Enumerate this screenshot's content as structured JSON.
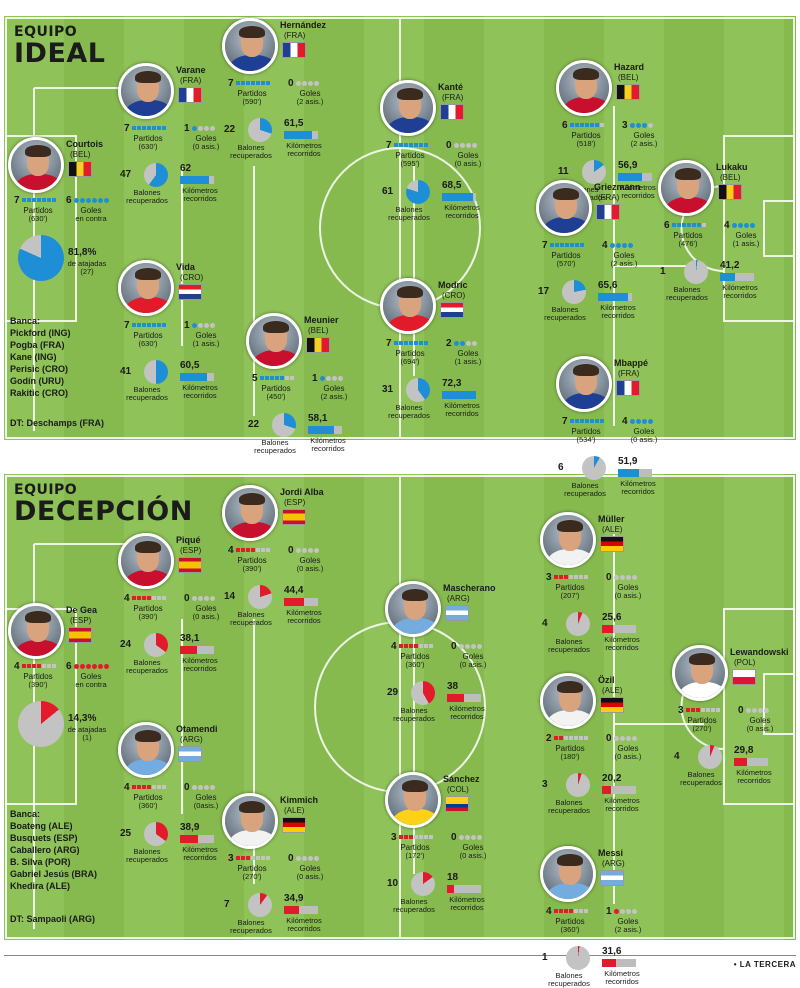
{
  "colors": {
    "ideal": "#1e8fd6",
    "deception": "#e21b2c",
    "grey": "#c3c3c3"
  },
  "labels": {
    "partidos": "Partidos",
    "goles": "Goles",
    "balones": "Balones",
    "recuperados": "recuperados",
    "kilometros": "Kilómetros",
    "recorridos": "recorridos",
    "goles_en_contra": "Goles",
    "en_contra": "en contra",
    "de_atajadas": "de atajadas"
  },
  "teams": [
    {
      "id": "ideal",
      "small_title": "EQUIPO",
      "big_title": "IDEAL",
      "bench_title": "Banca:",
      "bench": [
        "Pickford (ING)",
        "Pogba (FRA)",
        "Kane (ING)",
        "Perisic (CRO)",
        "Godín (URU)",
        "Rakitic (CRO)"
      ],
      "dt": "DT: Deschamps (FRA)",
      "goalkeeper": {
        "name": "Courtois",
        "country": "(BEL)",
        "flag": "bel",
        "matches": "7",
        "minutes": "(630')",
        "conceded": "6",
        "save_pct_text": "81,8%",
        "saves": "(27)",
        "save_fraction": 0.818
      },
      "players": [
        {
          "name": "Varane",
          "country": "(FRA)",
          "flag": "fra",
          "matches": "7",
          "minutes": "(630')",
          "goals": "1",
          "assists": "(0 asis.)",
          "recovered": "47",
          "rec_fraction": 0.6,
          "km": "62",
          "km_fraction": 0.85
        },
        {
          "name": "Vida",
          "country": "(CRO)",
          "flag": "cro",
          "matches": "7",
          "minutes": "(630')",
          "goals": "1",
          "assists": "(1 asis.)",
          "recovered": "41",
          "rec_fraction": 0.5,
          "km": "60,5",
          "km_fraction": 0.8
        },
        {
          "name": "Hernández",
          "country": "(FRA)",
          "flag": "fra",
          "matches": "7",
          "minutes": "(590')",
          "goals": "0",
          "assists": "(2 asis.)",
          "recovered": "22",
          "rec_fraction": 0.3,
          "km": "61,5",
          "km_fraction": 0.83
        },
        {
          "name": "Meunier",
          "country": "(BEL)",
          "flag": "bel",
          "matches": "5",
          "minutes": "(450')",
          "goals": "1",
          "assists": "(2 asis.)",
          "recovered": "22",
          "rec_fraction": 0.3,
          "km": "58,1",
          "km_fraction": 0.75
        },
        {
          "name": "Kanté",
          "country": "(FRA)",
          "flag": "fra",
          "matches": "7",
          "minutes": "(595')",
          "goals": "0",
          "assists": "(0 asis.)",
          "recovered": "61",
          "rec_fraction": 0.8,
          "km": "68,5",
          "km_fraction": 0.92
        },
        {
          "name": "Modric",
          "country": "(CRO)",
          "flag": "cro",
          "matches": "7",
          "minutes": "(694')",
          "goals": "2",
          "assists": "(1 asis.)",
          "recovered": "31",
          "rec_fraction": 0.4,
          "km": "72,3",
          "km_fraction": 1.0
        },
        {
          "name": "Hazard",
          "country": "(BEL)",
          "flag": "bel",
          "matches": "6",
          "minutes": "(518')",
          "goals": "3",
          "assists": "(2 asis.)",
          "recovered": "11",
          "rec_fraction": 0.15,
          "km": "56,9",
          "km_fraction": 0.72
        },
        {
          "name": "Griezmann",
          "country": "(FRA)",
          "flag": "fra",
          "matches": "7",
          "minutes": "(570')",
          "goals": "4",
          "assists": "(2 asis.)",
          "recovered": "17",
          "rec_fraction": 0.22,
          "km": "65,6",
          "km_fraction": 0.88
        },
        {
          "name": "Lukaku",
          "country": "(BEL)",
          "flag": "bel",
          "matches": "6",
          "minutes": "(476')",
          "goals": "4",
          "assists": "(1 asis.)",
          "recovered": "1",
          "rec_fraction": 0.02,
          "km": "41,2",
          "km_fraction": 0.45
        },
        {
          "name": "Mbappé",
          "country": "(FRA)",
          "flag": "fra",
          "matches": "7",
          "minutes": "(534')",
          "goals": "4",
          "assists": "(0 asis.)",
          "recovered": "6",
          "rec_fraction": 0.08,
          "km": "51,9",
          "km_fraction": 0.62
        }
      ]
    },
    {
      "id": "deception",
      "small_title": "EQUIPO",
      "big_title": "DECEPCIÓN",
      "bench_title": "Banca:",
      "bench": [
        "Boateng (ALE)",
        "Busquets (ESP)",
        "Caballero (ARG)",
        "B. Silva (POR)",
        "Gabriel Jesús (BRA)",
        "Khedira (ALE)"
      ],
      "dt": "DT: Sampaoli (ARG)",
      "goalkeeper": {
        "name": "De Gea",
        "country": "(ESP)",
        "flag": "esp",
        "matches": "4",
        "minutes": "(390')",
        "conceded": "6",
        "save_pct_text": "14,3%",
        "saves": "(1)",
        "save_fraction": 0.143
      },
      "players": [
        {
          "name": "Piqué",
          "country": "(ESP)",
          "flag": "esp",
          "matches": "4",
          "minutes": "(390')",
          "goals": "0",
          "assists": "(0 asis.)",
          "recovered": "24",
          "rec_fraction": 0.35,
          "km": "38,1",
          "km_fraction": 0.5
        },
        {
          "name": "Otamendi",
          "country": "(ARG)",
          "flag": "arg",
          "matches": "4",
          "minutes": "(360')",
          "goals": "0",
          "assists": "(0asis.)",
          "recovered": "25",
          "rec_fraction": 0.35,
          "km": "38,9",
          "km_fraction": 0.52
        },
        {
          "name": "Jordi Alba",
          "country": "(ESP)",
          "flag": "esp",
          "matches": "4",
          "minutes": "(390')",
          "goals": "0",
          "assists": "(0 asis.)",
          "recovered": "14",
          "rec_fraction": 0.2,
          "km": "44,4",
          "km_fraction": 0.6
        },
        {
          "name": "Kimmich",
          "country": "(ALE)",
          "flag": "ale",
          "matches": "3",
          "minutes": "(270')",
          "goals": "0",
          "assists": "(0 asis.)",
          "recovered": "7",
          "rec_fraction": 0.1,
          "km": "34,9",
          "km_fraction": 0.45
        },
        {
          "name": "Mascherano",
          "country": "(ARG)",
          "flag": "arg",
          "matches": "4",
          "minutes": "(360')",
          "goals": "0",
          "assists": "(0 asis.)",
          "recovered": "29",
          "rec_fraction": 0.42,
          "km": "38",
          "km_fraction": 0.5
        },
        {
          "name": "Sánchez",
          "country": "(COL)",
          "flag": "col",
          "matches": "3",
          "minutes": "(172')",
          "goals": "0",
          "assists": "(0 asis.)",
          "recovered": "10",
          "rec_fraction": 0.15,
          "km": "18",
          "km_fraction": 0.22
        },
        {
          "name": "Müller",
          "country": "(ALE)",
          "flag": "ale",
          "matches": "3",
          "minutes": "(207')",
          "goals": "0",
          "assists": "(0 asis.)",
          "recovered": "4",
          "rec_fraction": 0.06,
          "km": "25,6",
          "km_fraction": 0.32
        },
        {
          "name": "Özil",
          "country": "(ALE)",
          "flag": "ale",
          "matches": "2",
          "minutes": "(180')",
          "goals": "0",
          "assists": "(0 asis.)",
          "recovered": "3",
          "rec_fraction": 0.05,
          "km": "20,2",
          "km_fraction": 0.26
        },
        {
          "name": "Lewandowski",
          "country": "(POL)",
          "flag": "pol",
          "matches": "3",
          "minutes": "(270')",
          "goals": "0",
          "assists": "(0 asis.)",
          "recovered": "4",
          "rec_fraction": 0.06,
          "km": "29,8",
          "km_fraction": 0.38
        },
        {
          "name": "Messi",
          "country": "(ARG)",
          "flag": "arg",
          "matches": "4",
          "minutes": "(360')",
          "goals": "1",
          "assists": "(2 asis.)",
          "recovered": "1",
          "rec_fraction": 0.02,
          "km": "31,6",
          "km_fraction": 0.4
        }
      ]
    }
  ],
  "footer": "• LA TERCERA"
}
